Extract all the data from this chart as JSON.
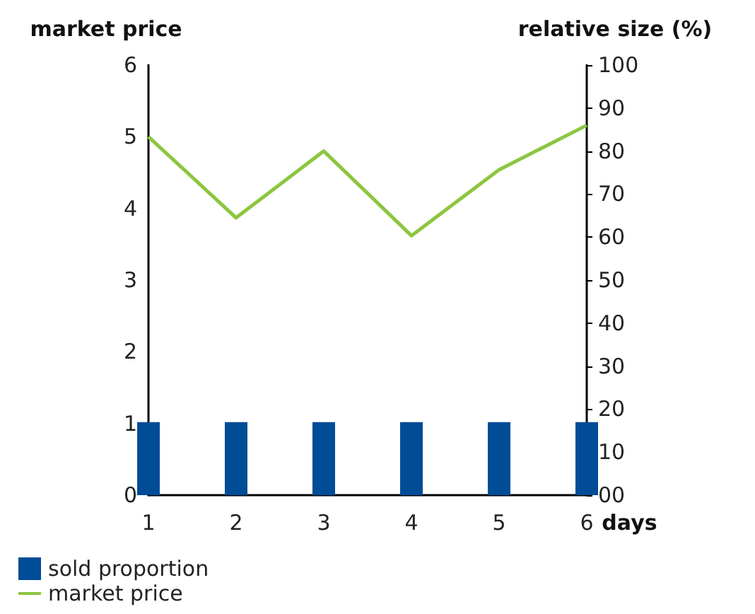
{
  "chart_data": {
    "type": "bar",
    "xlabel": "days",
    "ylabel": "market price",
    "y2label": "relative size (%)",
    "x": [
      1,
      2,
      3,
      4,
      5,
      6
    ],
    "series": [
      {
        "name": "sold proportion",
        "axis": "y2",
        "color": "#004c97",
        "values": [
          17,
          17,
          17,
          17,
          17,
          17
        ]
      },
      {
        "name": "market price",
        "type": "line",
        "color": "#8cc63f",
        "values": [
          5.0,
          3.87,
          4.8,
          3.62,
          4.54,
          5.16
        ]
      }
    ],
    "xlim": [
      1,
      6
    ],
    "xticks": [
      1,
      2,
      3,
      4,
      5,
      6
    ],
    "ylim": [
      0,
      6
    ],
    "yticks": [
      0,
      1,
      2,
      3,
      4,
      5,
      6
    ],
    "y2lim": [
      0,
      100
    ],
    "y2ticks": [
      {
        "value": 0,
        "label": "00"
      },
      10,
      20,
      30,
      40,
      50,
      60,
      70,
      80,
      90,
      100
    ],
    "grid": false,
    "legend": "bottom left",
    "marker": "none",
    "line_style": "solid"
  }
}
